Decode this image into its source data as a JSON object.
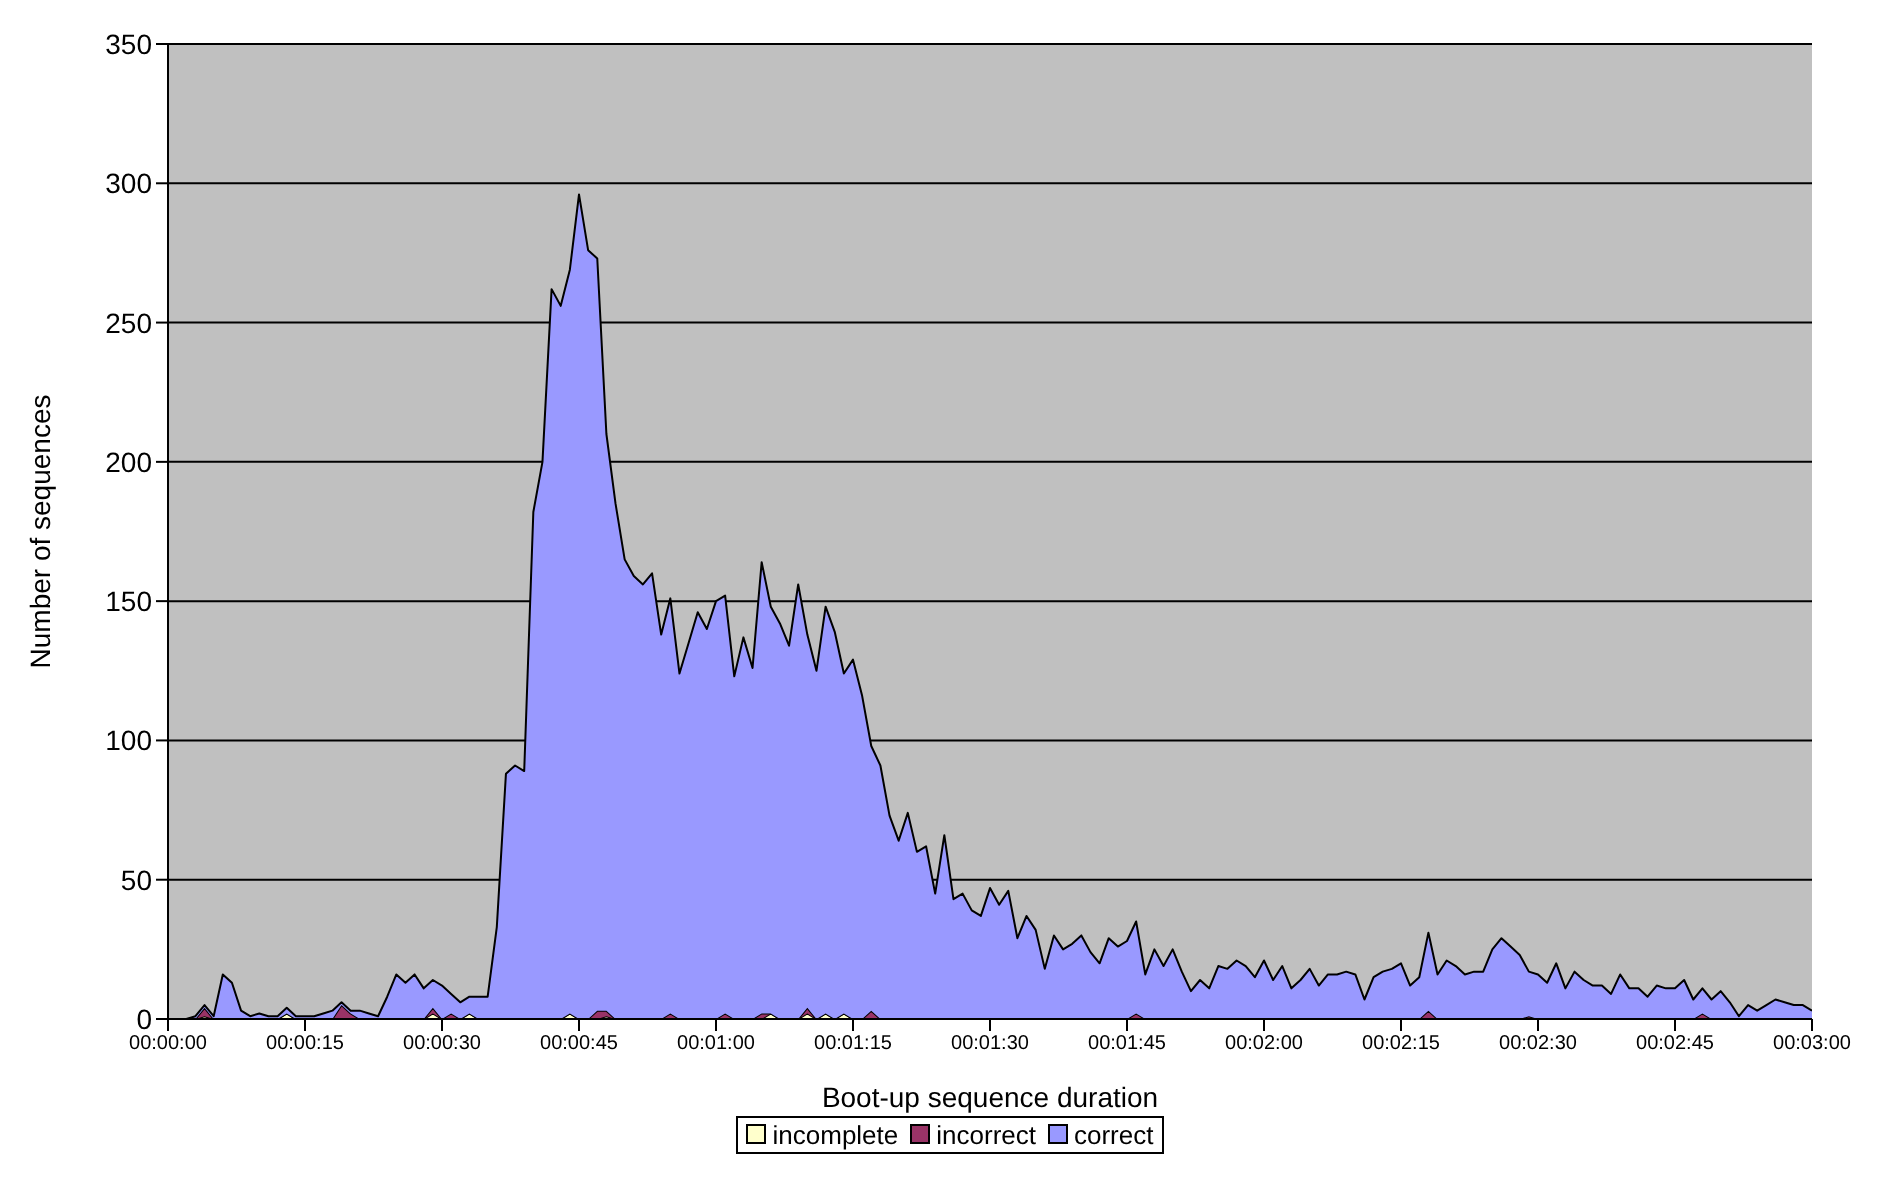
{
  "chart_data": {
    "type": "area",
    "stacked": true,
    "xlabel": "Boot-up sequence duration",
    "ylabel": "Number of sequences",
    "x": [
      0,
      1,
      2,
      3,
      4,
      5,
      6,
      7,
      8,
      9,
      10,
      11,
      12,
      13,
      14,
      15,
      16,
      17,
      18,
      19,
      20,
      21,
      22,
      23,
      24,
      25,
      26,
      27,
      28,
      29,
      30,
      31,
      32,
      33,
      34,
      35,
      36,
      37,
      38,
      39,
      40,
      41,
      42,
      43,
      44,
      45,
      46,
      47,
      48,
      49,
      50,
      51,
      52,
      53,
      54,
      55,
      56,
      57,
      58,
      59,
      60,
      61,
      62,
      63,
      64,
      65,
      66,
      67,
      68,
      69,
      70,
      71,
      72,
      73,
      74,
      75,
      76,
      77,
      78,
      79,
      80,
      81,
      82,
      83,
      84,
      85,
      86,
      87,
      88,
      89,
      90,
      91,
      92,
      93,
      94,
      95,
      96,
      97,
      98,
      99,
      100,
      101,
      102,
      103,
      104,
      105,
      106,
      107,
      108,
      109,
      110,
      111,
      112,
      113,
      114,
      115,
      116,
      117,
      118,
      119,
      120,
      121,
      122,
      123,
      124,
      125,
      126,
      127,
      128,
      129,
      130,
      131,
      132,
      133,
      134,
      135,
      136,
      137,
      138,
      139,
      140,
      141,
      142,
      143,
      144,
      145,
      146,
      147,
      148,
      149,
      150,
      151,
      152,
      153,
      154,
      155,
      156,
      157,
      158,
      159,
      160,
      161,
      162,
      163,
      164,
      165,
      166,
      167,
      168,
      169,
      170,
      171,
      172,
      173,
      174,
      175,
      176,
      177,
      178,
      179,
      180
    ],
    "series": [
      {
        "name": "incomplete",
        "color": "#ffffcc",
        "values": [
          0,
          0,
          0,
          0,
          1,
          0,
          0,
          0,
          0,
          0,
          0,
          0,
          0,
          2,
          0,
          0,
          0,
          0,
          0,
          0,
          0,
          0,
          0,
          0,
          0,
          0,
          0,
          0,
          0,
          2,
          0,
          0,
          0,
          2,
          0,
          0,
          0,
          0,
          0,
          0,
          0,
          0,
          0,
          0,
          2,
          0,
          0,
          0,
          1,
          0,
          0,
          0,
          0,
          0,
          0,
          0,
          0,
          0,
          0,
          0,
          0,
          0,
          0,
          0,
          0,
          0,
          2,
          0,
          0,
          0,
          2,
          0,
          2,
          0,
          2,
          0,
          0,
          0,
          0,
          0,
          0,
          0,
          0,
          0,
          0,
          0,
          0,
          0,
          0,
          0,
          0,
          0,
          0,
          0,
          0,
          0,
          0,
          0,
          0,
          0,
          0,
          0,
          0,
          0,
          0,
          0,
          0,
          0,
          0,
          0,
          0,
          0,
          0,
          0,
          0,
          0,
          0,
          0,
          0,
          0,
          0,
          0,
          0,
          0,
          0,
          0,
          0,
          0,
          0,
          0,
          0,
          0,
          0,
          0,
          0,
          0,
          0,
          0,
          0,
          0,
          0,
          0,
          0,
          0,
          0,
          0,
          0,
          0,
          0,
          0,
          0,
          0,
          0,
          0,
          0,
          0,
          0,
          0,
          0,
          0,
          0,
          0,
          0,
          0,
          0,
          0,
          0,
          0,
          0,
          0,
          0,
          0,
          0,
          0,
          0,
          0,
          0,
          0,
          0,
          0,
          0
        ]
      },
      {
        "name": "incorrect",
        "color": "#993366",
        "values": [
          0,
          0,
          0,
          0,
          3,
          0,
          0,
          0,
          0,
          0,
          0,
          0,
          0,
          0,
          0,
          0,
          0,
          0,
          0,
          5,
          2,
          0,
          0,
          0,
          0,
          0,
          0,
          0,
          0,
          2,
          0,
          2,
          0,
          0,
          0,
          0,
          0,
          0,
          0,
          0,
          0,
          0,
          0,
          0,
          0,
          0,
          0,
          3,
          2,
          0,
          0,
          0,
          0,
          0,
          0,
          2,
          0,
          0,
          0,
          0,
          0,
          2,
          0,
          0,
          0,
          2,
          0,
          0,
          0,
          0,
          2,
          0,
          0,
          0,
          0,
          0,
          0,
          3,
          0,
          0,
          0,
          0,
          0,
          0,
          0,
          0,
          0,
          0,
          0,
          0,
          0,
          0,
          0,
          0,
          0,
          0,
          0,
          0,
          0,
          0,
          0,
          0,
          0,
          0,
          0,
          0,
          2,
          0,
          0,
          0,
          0,
          0,
          0,
          0,
          0,
          0,
          0,
          0,
          0,
          0,
          0,
          0,
          0,
          0,
          0,
          0,
          0,
          0,
          0,
          0,
          0,
          0,
          0,
          0,
          0,
          0,
          0,
          0,
          3,
          0,
          0,
          0,
          0,
          0,
          0,
          0,
          0,
          0,
          0,
          1,
          0,
          0,
          0,
          0,
          0,
          0,
          0,
          0,
          0,
          0,
          0,
          0,
          0,
          0,
          0,
          0,
          0,
          0,
          2,
          0,
          0,
          0,
          0,
          0,
          0,
          0,
          0,
          0,
          0,
          0,
          0
        ]
      },
      {
        "name": "correct",
        "color": "#9999ff",
        "values": [
          0,
          0,
          0,
          1,
          1,
          1,
          16,
          13,
          3,
          1,
          2,
          1,
          1,
          2,
          1,
          1,
          1,
          2,
          3,
          1,
          1,
          3,
          2,
          1,
          8,
          16,
          13,
          16,
          11,
          10,
          12,
          7,
          6,
          6,
          8,
          8,
          33,
          88,
          91,
          89,
          182,
          200,
          262,
          256,
          267,
          296,
          276,
          270,
          207,
          185,
          165,
          159,
          156,
          160,
          138,
          149,
          124,
          135,
          146,
          140,
          150,
          150,
          123,
          137,
          126,
          162,
          146,
          142,
          134,
          156,
          134,
          125,
          146,
          139,
          122,
          129,
          116,
          95,
          91,
          73,
          64,
          74,
          60,
          62,
          45,
          66,
          43,
          45,
          39,
          37,
          47,
          41,
          46,
          29,
          37,
          32,
          18,
          30,
          25,
          27,
          30,
          24,
          20,
          29,
          26,
          28,
          33,
          16,
          25,
          19,
          25,
          17,
          10,
          14,
          11,
          19,
          18,
          21,
          19,
          15,
          21,
          14,
          19,
          11,
          14,
          18,
          12,
          16,
          16,
          17,
          16,
          7,
          15,
          17,
          18,
          20,
          12,
          15,
          28,
          16,
          21,
          19,
          16,
          17,
          17,
          25,
          29,
          26,
          23,
          16,
          16,
          13,
          20,
          11,
          17,
          14,
          12,
          12,
          9,
          16,
          11,
          11,
          8,
          12,
          11,
          11,
          14,
          7,
          9,
          7,
          10,
          6,
          1,
          5,
          3,
          5,
          7,
          6,
          5,
          5,
          3
        ]
      }
    ],
    "xlim": [
      0,
      180
    ],
    "xticks": [
      {
        "value": 0,
        "label": "00:00:00"
      },
      {
        "value": 15,
        "label": "00:00:15"
      },
      {
        "value": 30,
        "label": "00:00:30"
      },
      {
        "value": 45,
        "label": "00:00:45"
      },
      {
        "value": 60,
        "label": "00:01:00"
      },
      {
        "value": 75,
        "label": "00:01:15"
      },
      {
        "value": 90,
        "label": "00:01:30"
      },
      {
        "value": 105,
        "label": "00:01:45"
      },
      {
        "value": 120,
        "label": "00:02:00"
      },
      {
        "value": 135,
        "label": "00:02:15"
      },
      {
        "value": 150,
        "label": "00:02:30"
      },
      {
        "value": 165,
        "label": "00:02:45"
      },
      {
        "value": 180,
        "label": "00:03:00"
      }
    ],
    "ylim": [
      0,
      350
    ],
    "yticks": [
      0,
      50,
      100,
      150,
      200,
      250,
      300,
      350
    ],
    "grid": "y",
    "legend": "bottom"
  }
}
